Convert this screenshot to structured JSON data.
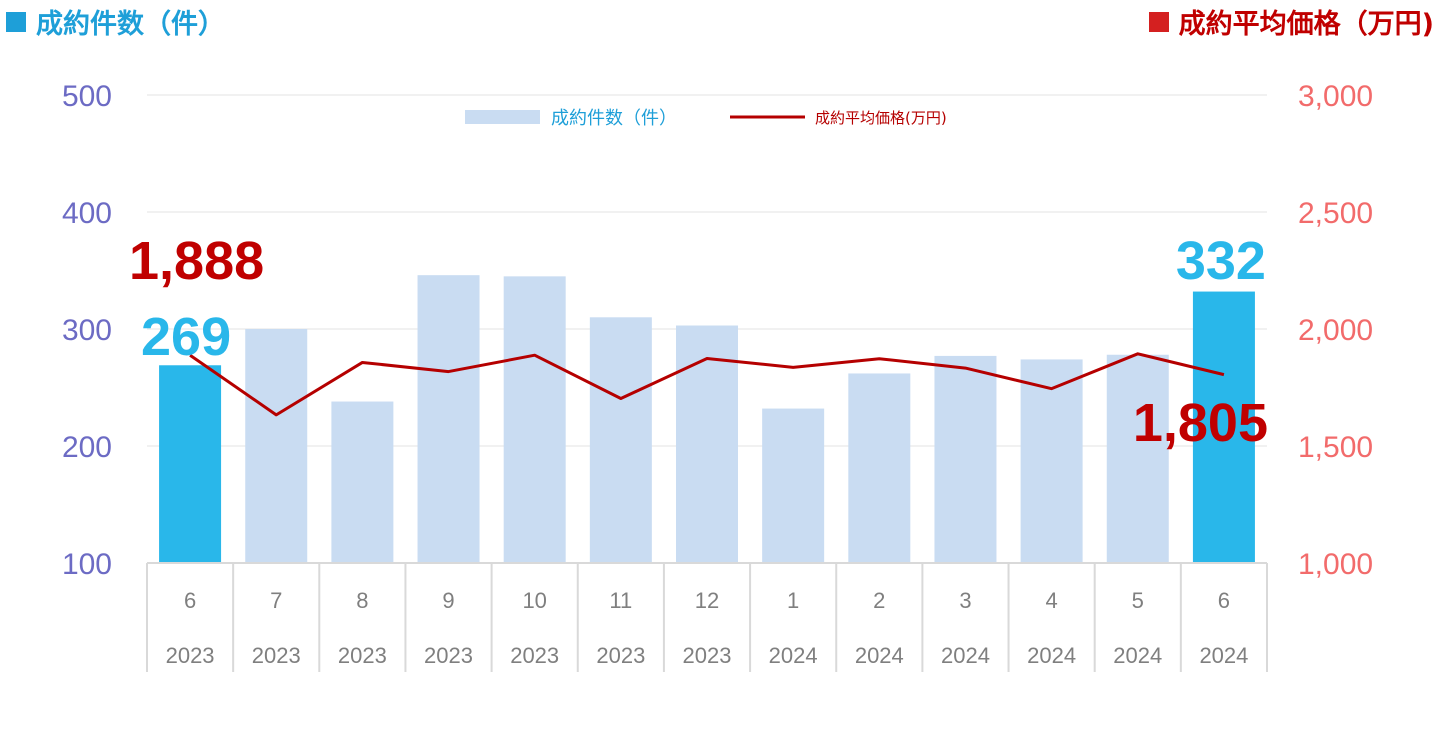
{
  "header": {
    "left_title": "成約件数（件）",
    "right_title": "成約平均価格（万円)"
  },
  "colors": {
    "count_accent": "#1e9fd8",
    "price_accent": "#c00000",
    "bar_default": "#c9dcf2",
    "bar_highlight": "#29b7ea",
    "line": "#b50000",
    "left_axis": "#6c6bc4",
    "right_axis": "#f26b6b"
  },
  "chart_data": {
    "type": "bar",
    "categories": [
      {
        "month": "6",
        "year": "2023"
      },
      {
        "month": "7",
        "year": "2023"
      },
      {
        "month": "8",
        "year": "2023"
      },
      {
        "month": "9",
        "year": "2023"
      },
      {
        "month": "10",
        "year": "2023"
      },
      {
        "month": "11",
        "year": "2023"
      },
      {
        "month": "12",
        "year": "2023"
      },
      {
        "month": "1",
        "year": "2024"
      },
      {
        "month": "2",
        "year": "2024"
      },
      {
        "month": "3",
        "year": "2024"
      },
      {
        "month": "4",
        "year": "2024"
      },
      {
        "month": "5",
        "year": "2024"
      },
      {
        "month": "6",
        "year": "2024"
      }
    ],
    "series": [
      {
        "name": "成約件数（件）",
        "type": "bar",
        "axis": "left",
        "values": [
          269,
          300,
          238,
          346,
          345,
          310,
          303,
          232,
          262,
          277,
          274,
          278,
          332
        ],
        "highlight": [
          0,
          12
        ]
      },
      {
        "name": "成約平均価格(万円)",
        "type": "line",
        "axis": "right",
        "values": [
          1888,
          1633,
          1857,
          1818,
          1888,
          1703,
          1874,
          1836,
          1873,
          1833,
          1745,
          1894,
          1805
        ]
      }
    ],
    "left_axis": {
      "min": 100,
      "max": 500,
      "ticks": [
        "100",
        "200",
        "300",
        "400",
        "500"
      ]
    },
    "right_axis": {
      "min": 1000,
      "max": 3000,
      "ticks": [
        "1,000",
        "1,500",
        "2,000",
        "2,500",
        "3,000"
      ]
    },
    "grid": true,
    "legend_position": "top-center",
    "callouts": {
      "count_first": "269",
      "count_last": "332",
      "price_first": "1,888",
      "price_last": "1,805"
    }
  }
}
